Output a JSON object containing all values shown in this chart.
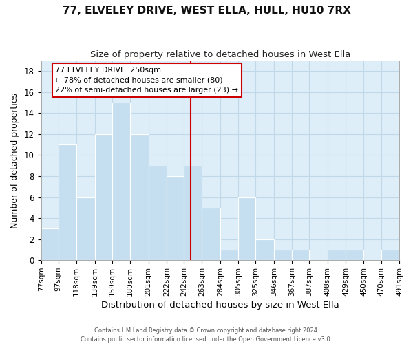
{
  "title": "77, ELVELEY DRIVE, WEST ELLA, HULL, HU10 7RX",
  "subtitle": "Size of property relative to detached houses in West Ella",
  "xlabel": "Distribution of detached houses by size in West Ella",
  "ylabel": "Number of detached properties",
  "bin_edges": [
    77,
    97,
    118,
    139,
    159,
    180,
    201,
    222,
    242,
    263,
    284,
    305,
    325,
    346,
    367,
    387,
    408,
    429,
    450,
    470,
    491
  ],
  "counts": [
    3,
    11,
    6,
    12,
    15,
    12,
    9,
    8,
    9,
    5,
    1,
    6,
    2,
    1,
    1,
    0,
    1,
    1,
    0,
    1
  ],
  "bar_color": "#c5dff0",
  "bar_edge_color": "#ffffff",
  "property_line_x": 250,
  "property_line_color": "#cc0000",
  "annotation_line1": "77 ELVELEY DRIVE: 250sqm",
  "annotation_line2": "← 78% of detached houses are smaller (80)",
  "annotation_line3": "22% of semi-detached houses are larger (23) →",
  "annotation_box_color": "#ffffff",
  "annotation_box_edge_color": "#cc0000",
  "ylim": [
    0,
    19
  ],
  "yticks": [
    0,
    2,
    4,
    6,
    8,
    10,
    12,
    14,
    16,
    18
  ],
  "tick_labels": [
    "77sqm",
    "97sqm",
    "118sqm",
    "139sqm",
    "159sqm",
    "180sqm",
    "201sqm",
    "222sqm",
    "242sqm",
    "263sqm",
    "284sqm",
    "305sqm",
    "325sqm",
    "346sqm",
    "367sqm",
    "387sqm",
    "408sqm",
    "429sqm",
    "450sqm",
    "470sqm",
    "491sqm"
  ],
  "footer_line1": "Contains HM Land Registry data © Crown copyright and database right 2024.",
  "footer_line2": "Contains public sector information licensed under the Open Government Licence v3.0.",
  "background_color": "#ffffff",
  "plot_bg_color": "#ddeef8",
  "grid_color": "#c0d8e8",
  "title_fontsize": 11,
  "subtitle_fontsize": 9.5
}
